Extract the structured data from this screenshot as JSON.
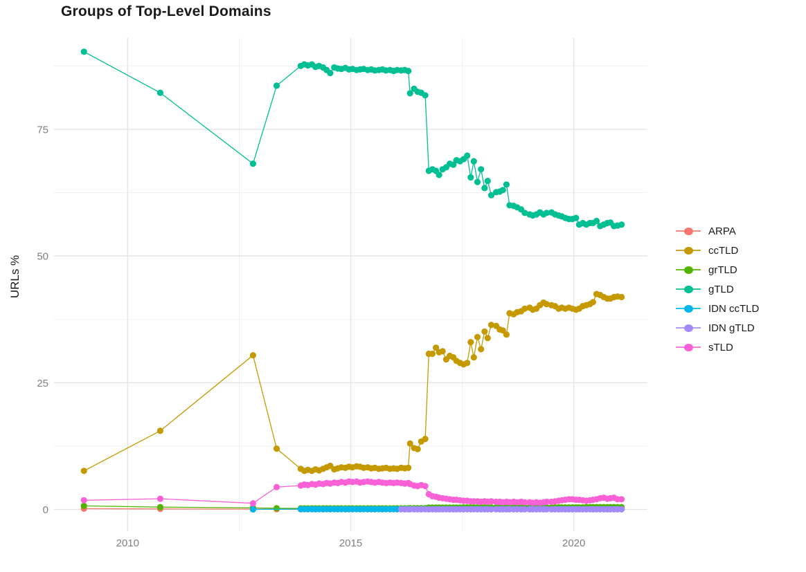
{
  "chart_data": {
    "type": "line",
    "title": "Groups of Top-Level Domains",
    "xlabel": "",
    "ylabel": "URLs %",
    "grid": true,
    "legend": {
      "position": "right",
      "title": ""
    },
    "x_axis": {
      "domain": [
        2008.35,
        2021.65
      ],
      "major_ticks": [
        2010,
        2015,
        2020
      ],
      "minor_ticks": [
        2012.5,
        2017.5
      ],
      "tick_labels": [
        "2010",
        "2015",
        "2020"
      ]
    },
    "y_axis": {
      "domain": [
        -4.3,
        93.0
      ],
      "major_ticks": [
        0,
        25,
        50,
        75
      ],
      "minor_ticks": [
        12.5,
        37.5,
        62.5,
        87.5
      ],
      "tick_labels": [
        "0",
        "25",
        "50",
        "75"
      ]
    },
    "x_common": [
      2009.02,
      2010.73,
      2012.81,
      2013.34,
      2013.88,
      2013.96,
      2014.04,
      2014.13,
      2014.21,
      2014.29,
      2014.38,
      2014.46,
      2014.54,
      2014.63,
      2014.71,
      2014.79,
      2014.88,
      2014.96,
      2015.04,
      2015.13,
      2015.21,
      2015.29,
      2015.38,
      2015.46,
      2015.54,
      2015.63,
      2015.71,
      2015.79,
      2015.88,
      2015.96,
      2016.04,
      2016.13,
      2016.21,
      2016.29,
      2016.33,
      2016.42,
      2016.5,
      2016.58,
      2016.67,
      2016.75,
      2016.83,
      2016.91,
      2016.98,
      2017.06,
      2017.14,
      2017.22,
      2017.3,
      2017.37,
      2017.45,
      2017.53,
      2017.61,
      2017.69,
      2017.76,
      2017.84,
      2017.92,
      2018.0,
      2018.07,
      2018.15,
      2018.26,
      2018.34,
      2018.41,
      2018.49,
      2018.56,
      2018.65,
      2018.73,
      2018.82,
      2018.9,
      2019.01,
      2019.08,
      2019.16,
      2019.24,
      2019.32,
      2019.39,
      2019.5,
      2019.58,
      2019.66,
      2019.73,
      2019.81,
      2019.89,
      2019.97,
      2020.05,
      2020.12,
      2020.2,
      2020.28,
      2020.36,
      2020.43,
      2020.51,
      2020.59,
      2020.67,
      2020.75,
      2020.82,
      2020.9,
      2020.98,
      2021.07
    ],
    "series": [
      {
        "name": "ARPA",
        "color": "#F8766D",
        "x": [
          2009.02,
          2010.73,
          2012.81,
          2013.34,
          2013.88,
          2014.04,
          2014.21,
          2014.38,
          2014.54,
          2014.71,
          2014.88,
          2015.04,
          2015.21,
          2015.38,
          2015.54,
          2015.71,
          2015.88,
          2016.04,
          2016.21,
          2016.42,
          2016.58,
          2016.75,
          2016.91,
          2017.06,
          2017.22,
          2017.37,
          2017.53,
          2017.69,
          2017.84,
          2018.0,
          2018.15,
          2018.34,
          2018.49,
          2018.65,
          2018.82,
          2019.01,
          2019.16,
          2019.32,
          2019.5,
          2019.66,
          2019.81,
          2019.97,
          2020.12,
          2020.28,
          2020.43,
          2020.59,
          2020.75,
          2020.9,
          2021.07
        ],
        "y": [
          0.15,
          0.1,
          0.05,
          0.04,
          0.03,
          0.03,
          0.03,
          0.03,
          0.03,
          0.03,
          0.03,
          0.03,
          0.03,
          0.03,
          0.03,
          0.03,
          0.03,
          0.03,
          0.03,
          0.03,
          0.03,
          0.03,
          0.03,
          0.03,
          0.03,
          0.03,
          0.03,
          0.03,
          0.03,
          0.03,
          0.03,
          0.03,
          0.03,
          0.03,
          0.03,
          0.03,
          0.03,
          0.03,
          0.03,
          0.03,
          0.03,
          0.03,
          0.03,
          0.03,
          0.03,
          0.03,
          0.03,
          0.03,
          0.03
        ]
      },
      {
        "name": "ccTLD",
        "color": "#C49A00",
        "y": [
          7.6,
          15.5,
          30.4,
          12.0,
          8.0,
          7.6,
          7.8,
          7.6,
          7.9,
          7.7,
          8.0,
          8.3,
          8.6,
          7.9,
          8.1,
          8.3,
          8.2,
          8.4,
          8.3,
          8.5,
          8.4,
          8.2,
          8.3,
          8.1,
          8.2,
          8.0,
          8.1,
          8.2,
          8.0,
          8.1,
          8.0,
          8.2,
          8.1,
          8.2,
          13.0,
          12.1,
          11.9,
          13.4,
          13.9,
          30.7,
          30.7,
          31.9,
          31.0,
          31.2,
          29.6,
          30.3,
          30.0,
          29.3,
          28.9,
          28.6,
          28.9,
          33.0,
          30.0,
          34.0,
          31.6,
          35.1,
          33.8,
          36.4,
          36.2,
          35.5,
          35.3,
          34.5,
          38.7,
          38.5,
          38.9,
          39.1,
          39.6,
          39.8,
          39.4,
          39.6,
          40.3,
          40.8,
          40.5,
          40.3,
          40.1,
          39.6,
          39.8,
          39.6,
          39.8,
          39.6,
          39.4,
          39.6,
          40.1,
          40.3,
          40.5,
          40.9,
          42.5,
          42.3,
          41.9,
          41.6,
          41.6,
          41.9,
          42.0,
          41.9
        ]
      },
      {
        "name": "grTLD",
        "color": "#53B400",
        "y": [
          0.7,
          0.45,
          0.3,
          0.22,
          0.2,
          0.2,
          0.2,
          0.2,
          0.2,
          0.2,
          0.2,
          0.2,
          0.2,
          0.2,
          0.2,
          0.2,
          0.2,
          0.2,
          0.2,
          0.2,
          0.2,
          0.2,
          0.2,
          0.2,
          0.2,
          0.2,
          0.2,
          0.2,
          0.2,
          0.2,
          0.2,
          0.2,
          0.2,
          0.2,
          0.25,
          0.25,
          0.25,
          0.25,
          0.25,
          0.35,
          0.35,
          0.35,
          0.35,
          0.35,
          0.35,
          0.35,
          0.35,
          0.35,
          0.35,
          0.4,
          0.4,
          0.4,
          0.4,
          0.4,
          0.4,
          0.4,
          0.4,
          0.4,
          0.4,
          0.4,
          0.4,
          0.4,
          0.4,
          0.4,
          0.4,
          0.4,
          0.4,
          0.4,
          0.4,
          0.4,
          0.4,
          0.4,
          0.4,
          0.4,
          0.4,
          0.4,
          0.4,
          0.4,
          0.4,
          0.4,
          0.4,
          0.4,
          0.4,
          0.45,
          0.45,
          0.45,
          0.45,
          0.45,
          0.45,
          0.45,
          0.45,
          0.45,
          0.45,
          0.45
        ]
      },
      {
        "name": "gTLD",
        "color": "#00BF93",
        "y": [
          90.3,
          82.2,
          68.2,
          83.6,
          87.5,
          87.8,
          87.6,
          87.8,
          87.3,
          87.5,
          87.2,
          86.7,
          86.1,
          87.2,
          87.0,
          86.9,
          87.1,
          86.8,
          86.9,
          86.7,
          86.8,
          86.9,
          86.7,
          86.8,
          86.6,
          86.7,
          86.8,
          86.6,
          86.7,
          86.5,
          86.7,
          86.6,
          86.7,
          86.5,
          82.1,
          83.0,
          82.4,
          82.2,
          81.7,
          66.8,
          67.1,
          66.8,
          66.0,
          67.1,
          67.5,
          68.2,
          68.0,
          68.9,
          68.7,
          69.1,
          69.8,
          65.5,
          68.7,
          64.6,
          67.1,
          63.4,
          64.8,
          62.0,
          62.6,
          62.7,
          63.0,
          64.1,
          60.0,
          59.9,
          59.6,
          59.2,
          58.5,
          58.2,
          58.0,
          58.2,
          58.6,
          58.2,
          58.5,
          58.6,
          58.2,
          58.0,
          57.8,
          57.5,
          57.3,
          57.3,
          57.5,
          56.2,
          56.5,
          56.2,
          56.5,
          56.5,
          56.9,
          55.9,
          56.2,
          56.5,
          56.6,
          55.9,
          56.0,
          56.2
        ]
      },
      {
        "name": "IDN ccTLD",
        "color": "#00B6EB",
        "x": [
          2012.81,
          2013.88,
          2013.96,
          2014.04,
          2014.13,
          2014.21,
          2014.29,
          2014.38,
          2014.46,
          2014.54,
          2014.63,
          2014.71,
          2014.79,
          2014.88,
          2014.96,
          2015.04,
          2015.13,
          2015.21,
          2015.29,
          2015.38,
          2015.46,
          2015.54,
          2015.63,
          2015.71,
          2015.79,
          2015.88,
          2015.96,
          2016.04,
          2016.13,
          2016.21,
          2016.29,
          2016.33,
          2016.42,
          2016.5,
          2016.58,
          2016.67,
          2016.75,
          2016.83,
          2016.91,
          2016.98,
          2017.06,
          2017.14,
          2017.22,
          2017.3,
          2017.37,
          2017.45,
          2017.53,
          2017.61,
          2017.69,
          2017.76,
          2017.84,
          2017.92,
          2018.0,
          2018.07,
          2018.15,
          2018.26,
          2018.34,
          2018.41,
          2018.49,
          2018.56,
          2018.65,
          2018.73,
          2018.82,
          2018.9,
          2019.01,
          2019.08,
          2019.16,
          2019.24,
          2019.32,
          2019.39,
          2019.5,
          2019.58,
          2019.66,
          2019.73,
          2019.81,
          2019.89,
          2019.97,
          2020.05,
          2020.12,
          2020.2,
          2020.28,
          2020.36,
          2020.43,
          2020.51,
          2020.59,
          2020.67,
          2020.75,
          2020.82,
          2020.9,
          2020.98,
          2021.07
        ],
        "y": [
          0.0,
          0.05,
          0.05,
          0.05,
          0.05,
          0.05,
          0.05,
          0.05,
          0.05,
          0.05,
          0.05,
          0.05,
          0.05,
          0.05,
          0.05,
          0.05,
          0.05,
          0.05,
          0.05,
          0.05,
          0.05,
          0.05,
          0.05,
          0.05,
          0.05,
          0.05,
          0.05,
          0.05,
          0.05,
          0.05,
          0.05,
          0.05,
          0.05,
          0.05,
          0.05,
          0.05,
          0.05,
          0.05,
          0.05,
          0.05,
          0.05,
          0.05,
          0.05,
          0.05,
          0.05,
          0.05,
          0.05,
          0.05,
          0.05,
          0.05,
          0.05,
          0.05,
          0.05,
          0.05,
          0.05,
          0.05,
          0.05,
          0.05,
          0.05,
          0.05,
          0.05,
          0.05,
          0.05,
          0.05,
          0.05,
          0.05,
          0.05,
          0.05,
          0.05,
          0.05,
          0.05,
          0.05,
          0.05,
          0.05,
          0.05,
          0.05,
          0.05,
          0.05,
          0.05,
          0.05,
          0.05,
          0.05,
          0.05,
          0.05,
          0.05,
          0.05,
          0.05,
          0.05,
          0.05,
          0.05,
          0.05
        ]
      },
      {
        "name": "IDN gTLD",
        "color": "#A58AFF",
        "x": [
          2016.13,
          2016.21,
          2016.29,
          2016.33,
          2016.42,
          2016.5,
          2016.58,
          2016.67,
          2016.75,
          2016.83,
          2016.91,
          2016.98,
          2017.06,
          2017.14,
          2017.22,
          2017.3,
          2017.37,
          2017.45,
          2017.53,
          2017.61,
          2017.69,
          2017.76,
          2017.84,
          2017.92,
          2018.0,
          2018.07,
          2018.15,
          2018.26,
          2018.34,
          2018.41,
          2018.49,
          2018.56,
          2018.65,
          2018.73,
          2018.82,
          2018.9,
          2019.01,
          2019.08,
          2019.16,
          2019.24,
          2019.32,
          2019.39,
          2019.5,
          2019.58,
          2019.66,
          2019.73,
          2019.81,
          2019.89,
          2019.97,
          2020.05,
          2020.12,
          2020.2,
          2020.28,
          2020.36,
          2020.43,
          2020.51,
          2020.59,
          2020.67,
          2020.75,
          2020.82,
          2020.9,
          2020.98,
          2021.07
        ],
        "y": 0.02
      },
      {
        "name": "sTLD",
        "color": "#FB61D7",
        "y": [
          1.8,
          2.1,
          1.2,
          4.4,
          4.7,
          4.9,
          4.8,
          5.0,
          4.9,
          5.1,
          5.0,
          5.2,
          5.1,
          5.3,
          5.2,
          5.4,
          5.3,
          5.5,
          5.4,
          5.5,
          5.3,
          5.4,
          5.5,
          5.4,
          5.3,
          5.4,
          5.3,
          5.2,
          5.3,
          5.2,
          5.3,
          5.2,
          5.1,
          5.2,
          5.0,
          4.7,
          4.6,
          4.8,
          4.6,
          3.0,
          2.6,
          2.5,
          2.3,
          2.2,
          2.1,
          2.0,
          1.9,
          1.9,
          1.8,
          1.7,
          1.7,
          1.6,
          1.6,
          1.6,
          1.5,
          1.6,
          1.5,
          1.6,
          1.5,
          1.5,
          1.4,
          1.5,
          1.4,
          1.5,
          1.4,
          1.5,
          1.4,
          1.4,
          1.3,
          1.4,
          1.3,
          1.4,
          1.5,
          1.5,
          1.6,
          1.7,
          1.8,
          1.9,
          2.0,
          2.0,
          1.9,
          1.9,
          1.8,
          1.7,
          1.8,
          1.9,
          2.0,
          2.2,
          2.3,
          2.1,
          2.2,
          2.3,
          2.0,
          2.0
        ]
      }
    ],
    "style": {
      "background": "#FFFFFF",
      "grid_major_color": "#E3E3E3",
      "grid_minor_color": "#F0F0F0",
      "tick_label_color": "#7F7F7F",
      "title_color": "#1A1A1A"
    }
  }
}
